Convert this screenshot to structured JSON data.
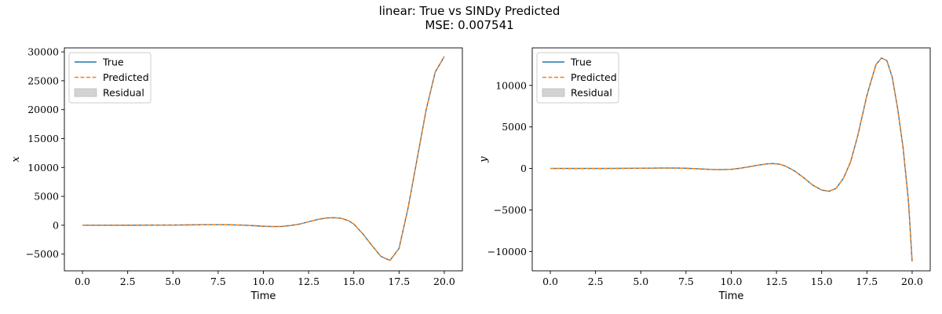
{
  "figure": {
    "title": "linear:  True vs SINDy Predicted",
    "subtitle": "MSE: 0.007541"
  },
  "colors": {
    "true_line": "#1f77b4",
    "predicted_line": "#ff7f0e",
    "residual_fill": "#d3d3d3"
  },
  "chart_data": [
    {
      "type": "line",
      "title": "",
      "xlabel": "Time",
      "ylabel": "x",
      "xlim": [
        -1,
        21
      ],
      "ylim": [
        -7890,
        30690
      ],
      "xticks": [
        0.0,
        2.5,
        5.0,
        7.5,
        10.0,
        12.5,
        15.0,
        17.5,
        20.0
      ],
      "xtick_labels": [
        "0.0",
        "2.5",
        "5.0",
        "7.5",
        "10.0",
        "12.5",
        "15.0",
        "17.5",
        "20.0"
      ],
      "yticks": [
        -5000,
        0,
        5000,
        10000,
        15000,
        20000,
        25000,
        30000
      ],
      "ytick_labels": [
        "−5000",
        "0",
        "5000",
        "10000",
        "15000",
        "20000",
        "25000",
        "30000"
      ],
      "legend": {
        "position": "top-left",
        "entries": [
          "True",
          "Predicted",
          "Residual"
        ]
      },
      "grid": false,
      "series": [
        {
          "name": "True",
          "style": "solid",
          "x": [
            0,
            1,
            2,
            3,
            4,
            5,
            6,
            7,
            7.5,
            8,
            8.5,
            9,
            9.5,
            10,
            10.5,
            11,
            11.5,
            12,
            12.5,
            13,
            13.5,
            13.9,
            14.3,
            14.7,
            15,
            15.5,
            16,
            16.5,
            17,
            17.5,
            18,
            18.5,
            19,
            19.5,
            20
          ],
          "y": [
            0,
            0,
            0,
            5,
            15,
            30,
            60,
            95,
            100,
            85,
            50,
            0,
            -80,
            -180,
            -230,
            -200,
            -50,
            200,
            600,
            1000,
            1250,
            1300,
            1200,
            800,
            200,
            -1500,
            -3500,
            -5400,
            -6100,
            -4000,
            3000,
            11500,
            20000,
            26500,
            29200
          ]
        },
        {
          "name": "Predicted",
          "style": "dashed",
          "x": [
            0,
            1,
            2,
            3,
            4,
            5,
            6,
            7,
            7.5,
            8,
            8.5,
            9,
            9.5,
            10,
            10.5,
            11,
            11.5,
            12,
            12.5,
            13,
            13.5,
            13.9,
            14.3,
            14.7,
            15,
            15.5,
            16,
            16.5,
            17,
            17.5,
            18,
            18.5,
            19,
            19.5,
            20
          ],
          "y": [
            0,
            0,
            0,
            5,
            15,
            30,
            60,
            95,
            100,
            85,
            50,
            0,
            -80,
            -180,
            -230,
            -200,
            -50,
            200,
            600,
            1000,
            1250,
            1300,
            1200,
            800,
            200,
            -1500,
            -3500,
            -5400,
            -6100,
            -4000,
            3000,
            11500,
            20000,
            26500,
            29200
          ]
        }
      ]
    },
    {
      "type": "line",
      "title": "",
      "xlabel": "Time",
      "ylabel": "y",
      "xlim": [
        -1,
        21
      ],
      "ylim": [
        -12330,
        14520
      ],
      "xticks": [
        0.0,
        2.5,
        5.0,
        7.5,
        10.0,
        12.5,
        15.0,
        17.5,
        20.0
      ],
      "xtick_labels": [
        "0.0",
        "2.5",
        "5.0",
        "7.5",
        "10.0",
        "12.5",
        "15.0",
        "17.5",
        "20.0"
      ],
      "yticks": [
        -10000,
        -5000,
        0,
        5000,
        10000
      ],
      "ytick_labels": [
        "−10000",
        "−5000",
        "0",
        "5000",
        "10000"
      ],
      "legend": {
        "position": "top-left",
        "entries": [
          "True",
          "Predicted",
          "Residual"
        ]
      },
      "grid": false,
      "series": [
        {
          "name": "True",
          "style": "solid",
          "x": [
            0,
            1,
            2,
            3,
            4,
            5,
            6,
            6.5,
            7,
            7.5,
            8,
            8.5,
            9,
            9.5,
            10,
            10.5,
            11,
            11.5,
            12,
            12.3,
            12.7,
            13,
            13.5,
            14,
            14.5,
            15,
            15.4,
            15.8,
            16.2,
            16.6,
            17,
            17.5,
            18,
            18.3,
            18.6,
            18.9,
            19.2,
            19.5,
            19.8,
            20
          ],
          "y": [
            0,
            0,
            0,
            0,
            10,
            25,
            45,
            50,
            45,
            20,
            -20,
            -80,
            -130,
            -140,
            -100,
            30,
            200,
            400,
            560,
            590,
            500,
            280,
            -300,
            -1100,
            -2000,
            -2600,
            -2750,
            -2400,
            -1200,
            800,
            4000,
            8800,
            12500,
            13300,
            13000,
            11000,
            7200,
            2500,
            -4000,
            -11200
          ]
        },
        {
          "name": "Predicted",
          "style": "dashed",
          "x": [
            0,
            1,
            2,
            3,
            4,
            5,
            6,
            6.5,
            7,
            7.5,
            8,
            8.5,
            9,
            9.5,
            10,
            10.5,
            11,
            11.5,
            12,
            12.3,
            12.7,
            13,
            13.5,
            14,
            14.5,
            15,
            15.4,
            15.8,
            16.2,
            16.6,
            17,
            17.5,
            18,
            18.3,
            18.6,
            18.9,
            19.2,
            19.5,
            19.8,
            20
          ],
          "y": [
            0,
            0,
            0,
            0,
            10,
            25,
            45,
            50,
            45,
            20,
            -20,
            -80,
            -130,
            -140,
            -100,
            30,
            200,
            400,
            560,
            590,
            500,
            280,
            -300,
            -1100,
            -2000,
            -2600,
            -2750,
            -2400,
            -1200,
            800,
            4000,
            8800,
            12500,
            13300,
            13000,
            11000,
            7200,
            2500,
            -4000,
            -11200
          ]
        }
      ]
    }
  ]
}
